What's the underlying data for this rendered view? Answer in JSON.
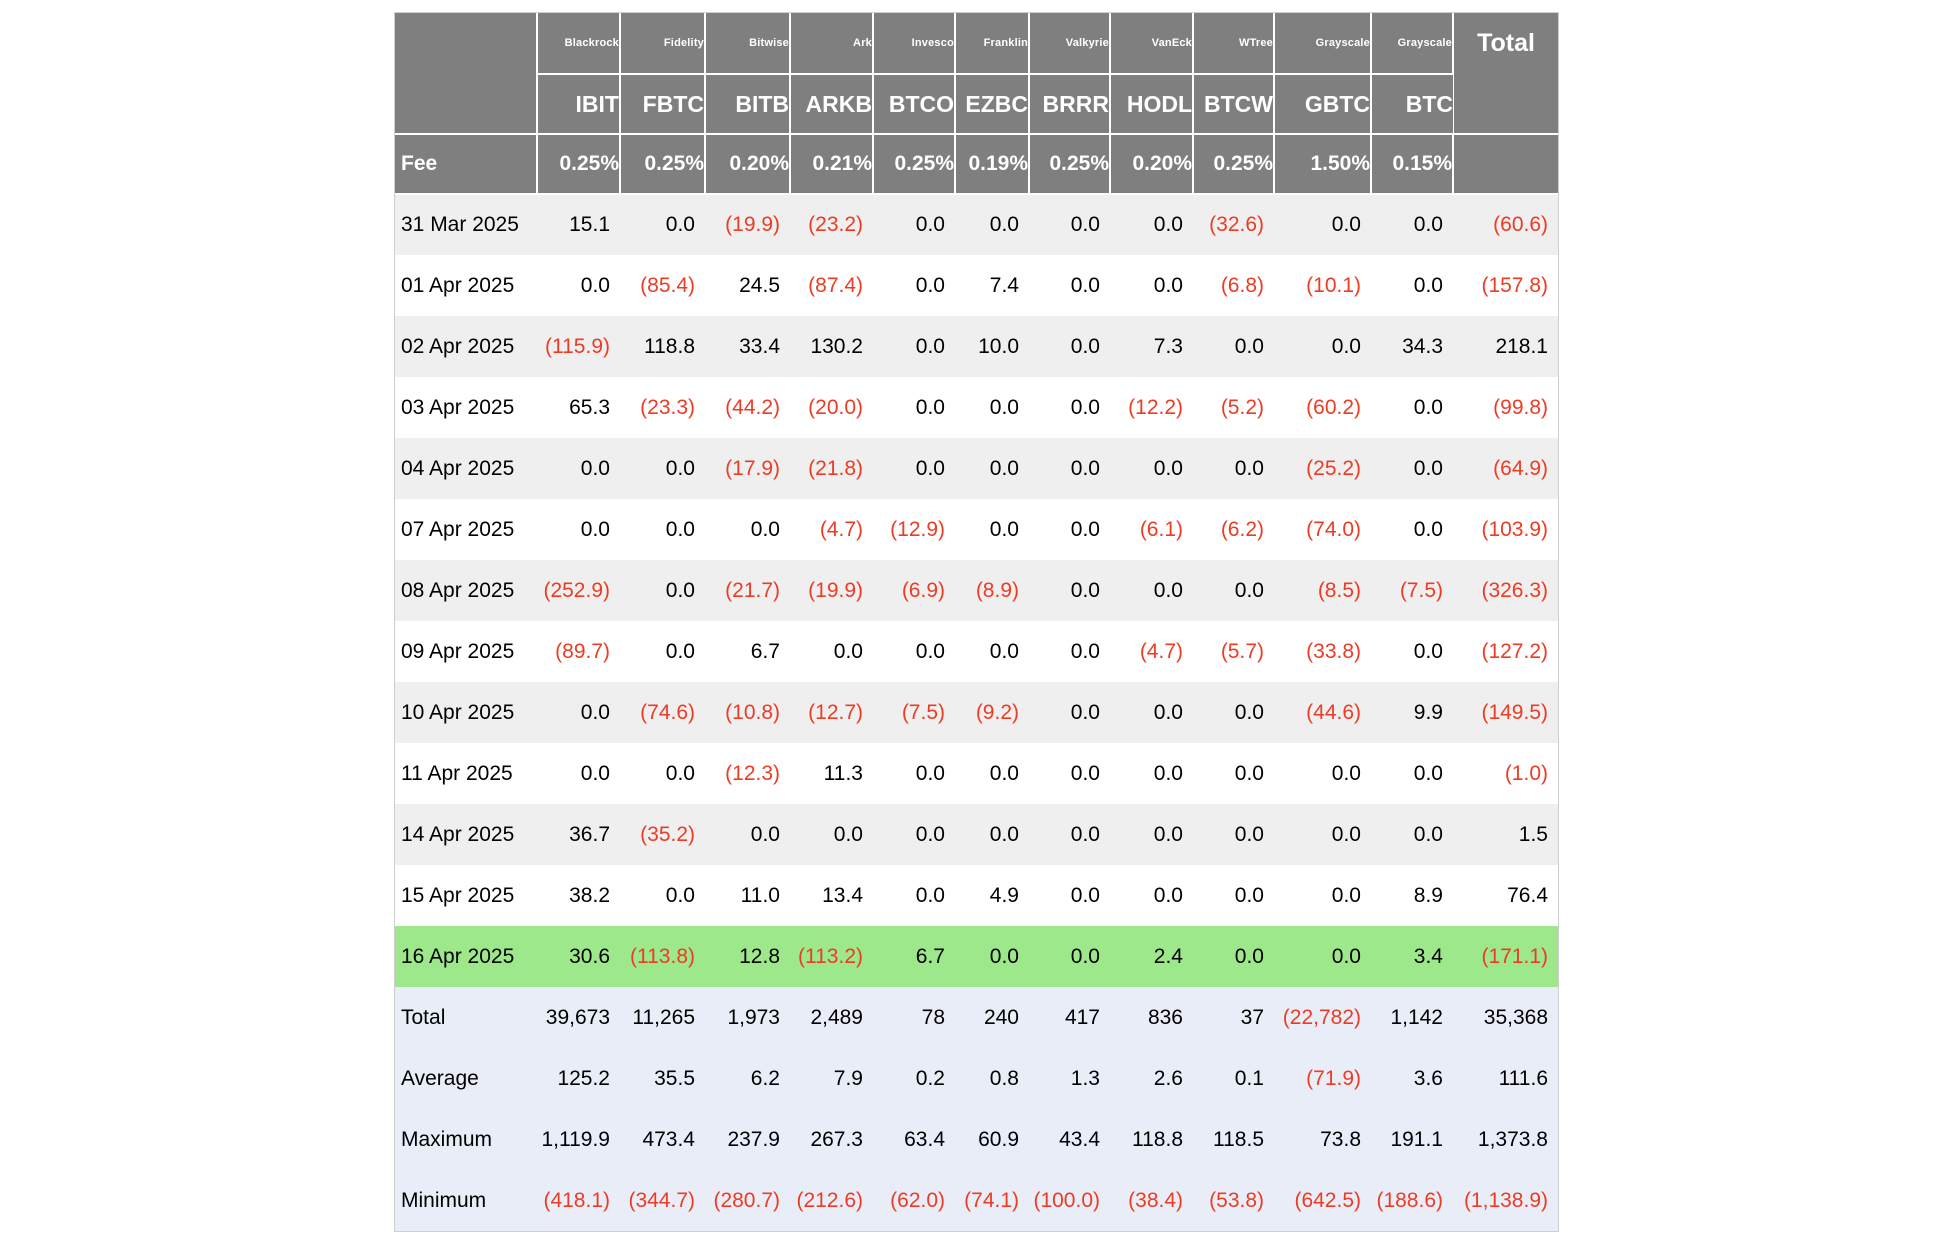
{
  "colors": {
    "header_bg": "#7f7f7f",
    "negative": "#ed3b24",
    "highlight_row": "#9de88b",
    "summary_bg": "#e9edf8",
    "stripe": "#efefef",
    "border": "#cfcfcf"
  },
  "chart_data": {
    "type": "table",
    "title": "Bitcoin ETF daily flows table",
    "issuers": [
      "Blackrock",
      "Fidelity",
      "Bitwise",
      "Ark",
      "Invesco",
      "Franklin",
      "Valkyrie",
      "VanEck",
      "WTree",
      "Grayscale",
      "Grayscale"
    ],
    "tickers": [
      "IBIT",
      "FBTC",
      "BITB",
      "ARKB",
      "BTCO",
      "EZBC",
      "BRRR",
      "HODL",
      "BTCW",
      "GBTC",
      "BTC"
    ],
    "total_label": "Total",
    "fee_label": "Fee",
    "fees": [
      "0.25%",
      "0.25%",
      "0.20%",
      "0.21%",
      "0.25%",
      "0.19%",
      "0.25%",
      "0.20%",
      "0.25%",
      "1.50%",
      "0.15%"
    ],
    "rows": [
      {
        "date": "31 Mar 2025",
        "highlight": false,
        "values": [
          "15.1",
          "0.0",
          "(19.9)",
          "(23.2)",
          "0.0",
          "0.0",
          "0.0",
          "0.0",
          "(32.6)",
          "0.0",
          "0.0",
          "(60.6)"
        ]
      },
      {
        "date": "01 Apr 2025",
        "highlight": false,
        "values": [
          "0.0",
          "(85.4)",
          "24.5",
          "(87.4)",
          "0.0",
          "7.4",
          "0.0",
          "0.0",
          "(6.8)",
          "(10.1)",
          "0.0",
          "(157.8)"
        ]
      },
      {
        "date": "02 Apr 2025",
        "highlight": false,
        "values": [
          "(115.9)",
          "118.8",
          "33.4",
          "130.2",
          "0.0",
          "10.0",
          "0.0",
          "7.3",
          "0.0",
          "0.0",
          "34.3",
          "218.1"
        ]
      },
      {
        "date": "03 Apr 2025",
        "highlight": false,
        "values": [
          "65.3",
          "(23.3)",
          "(44.2)",
          "(20.0)",
          "0.0",
          "0.0",
          "0.0",
          "(12.2)",
          "(5.2)",
          "(60.2)",
          "0.0",
          "(99.8)"
        ]
      },
      {
        "date": "04 Apr 2025",
        "highlight": false,
        "values": [
          "0.0",
          "0.0",
          "(17.9)",
          "(21.8)",
          "0.0",
          "0.0",
          "0.0",
          "0.0",
          "0.0",
          "(25.2)",
          "0.0",
          "(64.9)"
        ]
      },
      {
        "date": "07 Apr 2025",
        "highlight": false,
        "values": [
          "0.0",
          "0.0",
          "0.0",
          "(4.7)",
          "(12.9)",
          "0.0",
          "0.0",
          "(6.1)",
          "(6.2)",
          "(74.0)",
          "0.0",
          "(103.9)"
        ]
      },
      {
        "date": "08 Apr 2025",
        "highlight": false,
        "values": [
          "(252.9)",
          "0.0",
          "(21.7)",
          "(19.9)",
          "(6.9)",
          "(8.9)",
          "0.0",
          "0.0",
          "0.0",
          "(8.5)",
          "(7.5)",
          "(326.3)"
        ]
      },
      {
        "date": "09 Apr 2025",
        "highlight": false,
        "values": [
          "(89.7)",
          "0.0",
          "6.7",
          "0.0",
          "0.0",
          "0.0",
          "0.0",
          "(4.7)",
          "(5.7)",
          "(33.8)",
          "0.0",
          "(127.2)"
        ]
      },
      {
        "date": "10 Apr 2025",
        "highlight": false,
        "values": [
          "0.0",
          "(74.6)",
          "(10.8)",
          "(12.7)",
          "(7.5)",
          "(9.2)",
          "0.0",
          "0.0",
          "0.0",
          "(44.6)",
          "9.9",
          "(149.5)"
        ]
      },
      {
        "date": "11 Apr 2025",
        "highlight": false,
        "values": [
          "0.0",
          "0.0",
          "(12.3)",
          "11.3",
          "0.0",
          "0.0",
          "0.0",
          "0.0",
          "0.0",
          "0.0",
          "0.0",
          "(1.0)"
        ]
      },
      {
        "date": "14 Apr 2025",
        "highlight": false,
        "values": [
          "36.7",
          "(35.2)",
          "0.0",
          "0.0",
          "0.0",
          "0.0",
          "0.0",
          "0.0",
          "0.0",
          "0.0",
          "0.0",
          "1.5"
        ]
      },
      {
        "date": "15 Apr 2025",
        "highlight": false,
        "values": [
          "38.2",
          "0.0",
          "11.0",
          "13.4",
          "0.0",
          "4.9",
          "0.0",
          "0.0",
          "0.0",
          "0.0",
          "8.9",
          "76.4"
        ]
      },
      {
        "date": "16 Apr 2025",
        "highlight": true,
        "values": [
          "30.6",
          "(113.8)",
          "12.8",
          "(113.2)",
          "6.7",
          "0.0",
          "0.0",
          "2.4",
          "0.0",
          "0.0",
          "3.4",
          "(171.1)"
        ]
      }
    ],
    "summary_rows": [
      {
        "label": "Total",
        "values": [
          "39,673",
          "11,265",
          "1,973",
          "2,489",
          "78",
          "240",
          "417",
          "836",
          "37",
          "(22,782)",
          "1,142",
          "35,368"
        ]
      },
      {
        "label": "Average",
        "values": [
          "125.2",
          "35.5",
          "6.2",
          "7.9",
          "0.2",
          "0.8",
          "1.3",
          "2.6",
          "0.1",
          "(71.9)",
          "3.6",
          "111.6"
        ]
      },
      {
        "label": "Maximum",
        "values": [
          "1,119.9",
          "473.4",
          "237.9",
          "267.3",
          "63.4",
          "60.9",
          "43.4",
          "118.8",
          "118.5",
          "73.8",
          "191.1",
          "1,373.8"
        ]
      },
      {
        "label": "Minimum",
        "values": [
          "(418.1)",
          "(344.7)",
          "(280.7)",
          "(212.6)",
          "(62.0)",
          "(74.1)",
          "(100.0)",
          "(38.4)",
          "(53.8)",
          "(642.5)",
          "(188.6)",
          "(1,138.9)"
        ]
      }
    ]
  }
}
